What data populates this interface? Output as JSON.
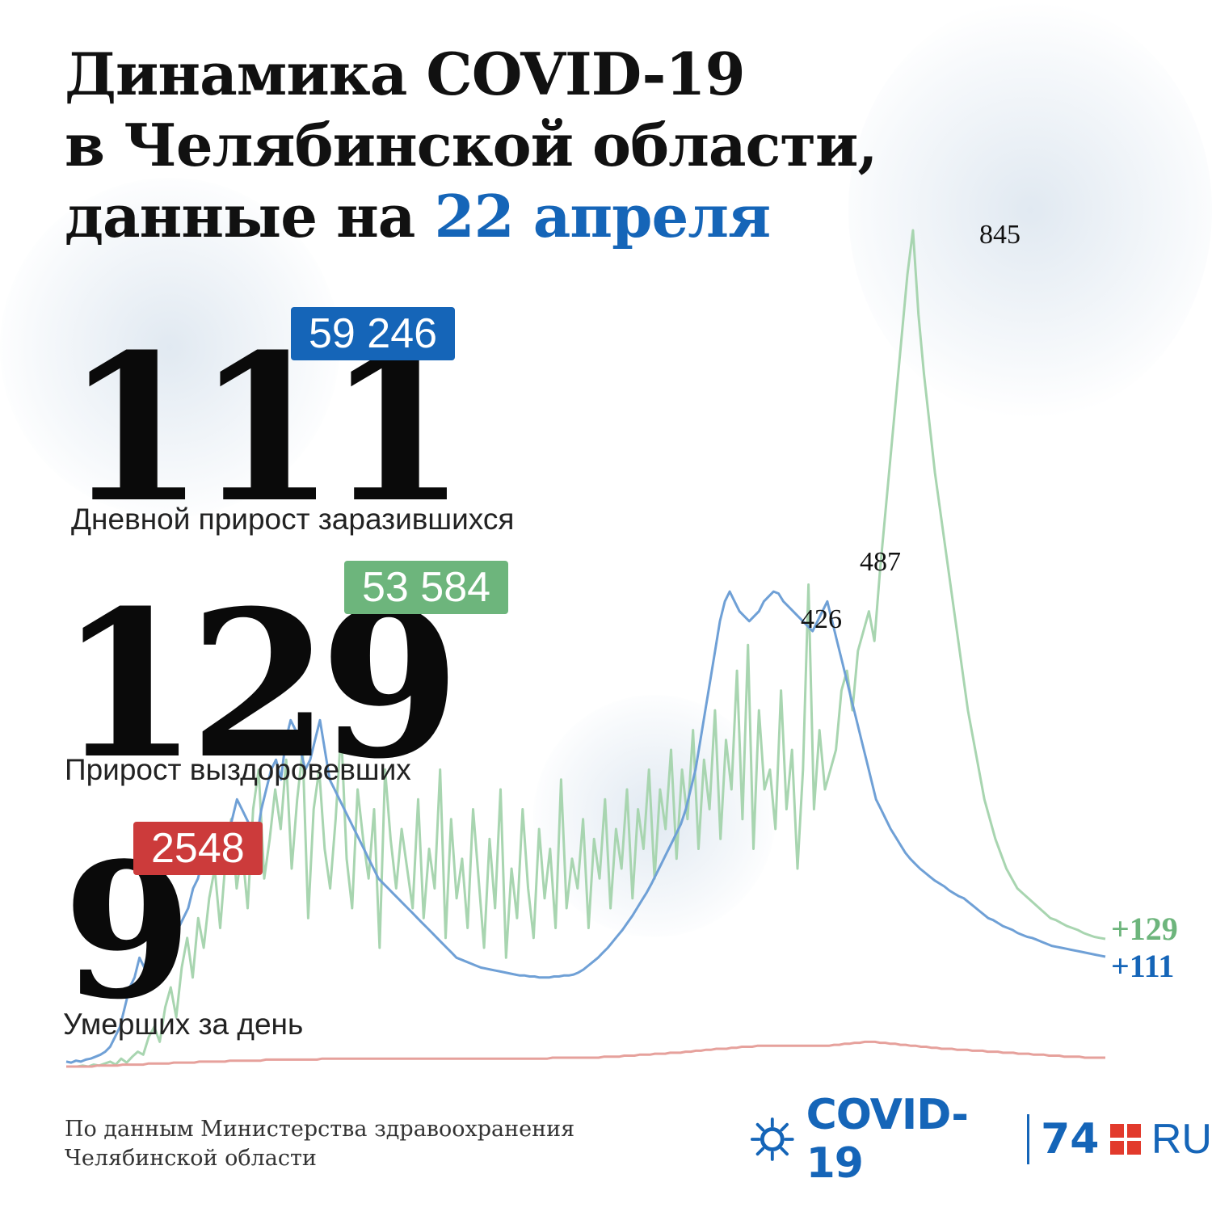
{
  "header": {
    "title_line1": "Динамика COVID-19",
    "title_line2": "в Челябинской области,",
    "title_line3_prefix": "данные на ",
    "title_line3_accent": "22 апреля"
  },
  "stats": {
    "infected": {
      "value": "111",
      "total": "59 246",
      "label": "Дневной прирост заразившихся",
      "color": "#1565b8"
    },
    "recovered": {
      "value": "129",
      "total": "53 584",
      "label": "Прирост выздоровевших",
      "color": "#6db57c"
    },
    "deaths": {
      "value": "9",
      "total": "2548",
      "label": "Умерших за день",
      "color": "#cc3b3b"
    }
  },
  "chart_data": {
    "type": "line",
    "series": [
      {
        "key": "infected",
        "color": "#6fa0d6",
        "values": [
          5,
          4,
          6,
          5,
          7,
          8,
          10,
          12,
          15,
          20,
          30,
          40,
          60,
          80,
          90,
          110,
          100,
          120,
          140,
          130,
          160,
          150,
          170,
          140,
          150,
          160,
          180,
          190,
          210,
          230,
          220,
          200,
          210,
          230,
          250,
          270,
          260,
          250,
          240,
          230,
          260,
          280,
          300,
          310,
          290,
          330,
          350,
          340,
          320,
          300,
          310,
          330,
          350,
          320,
          290,
          280,
          270,
          260,
          250,
          240,
          230,
          220,
          210,
          200,
          190,
          185,
          180,
          175,
          170,
          165,
          160,
          155,
          150,
          145,
          140,
          135,
          130,
          125,
          120,
          115,
          110,
          108,
          106,
          104,
          102,
          100,
          99,
          98,
          97,
          96,
          95,
          94,
          93,
          92,
          92,
          91,
          91,
          90,
          90,
          90,
          91,
          91,
          92,
          92,
          93,
          95,
          98,
          102,
          106,
          110,
          115,
          120,
          126,
          132,
          138,
          145,
          152,
          160,
          168,
          176,
          185,
          195,
          205,
          215,
          225,
          235,
          245,
          260,
          280,
          300,
          330,
          360,
          390,
          420,
          450,
          470,
          480,
          470,
          460,
          455,
          450,
          455,
          460,
          470,
          475,
          480,
          478,
          470,
          465,
          460,
          455,
          450,
          445,
          440,
          450,
          460,
          470,
          450,
          430,
          410,
          390,
          370,
          350,
          330,
          310,
          290,
          270,
          260,
          250,
          240,
          232,
          224,
          216,
          210,
          205,
          200,
          196,
          192,
          188,
          185,
          182,
          178,
          175,
          172,
          170,
          166,
          162,
          158,
          154,
          150,
          148,
          145,
          142,
          140,
          138,
          135,
          133,
          131,
          130,
          128,
          126,
          124,
          122,
          121,
          120,
          119,
          118,
          117,
          116,
          115,
          114,
          113,
          112,
          111
        ]
      },
      {
        "key": "recovered",
        "color": "#a8d5b0",
        "values": [
          0,
          0,
          0,
          1,
          0,
          2,
          1,
          3,
          5,
          2,
          8,
          4,
          10,
          15,
          12,
          30,
          40,
          25,
          60,
          80,
          50,
          100,
          130,
          90,
          150,
          120,
          170,
          200,
          140,
          210,
          250,
          180,
          220,
          160,
          260,
          300,
          190,
          230,
          280,
          240,
          310,
          200,
          270,
          320,
          150,
          260,
          300,
          220,
          180,
          250,
          340,
          210,
          160,
          280,
          230,
          190,
          260,
          120,
          300,
          230,
          180,
          240,
          200,
          160,
          270,
          150,
          220,
          180,
          300,
          130,
          250,
          170,
          210,
          140,
          260,
          190,
          120,
          230,
          160,
          280,
          110,
          200,
          150,
          260,
          180,
          130,
          240,
          170,
          220,
          140,
          290,
          160,
          210,
          180,
          250,
          140,
          230,
          190,
          270,
          160,
          240,
          200,
          280,
          170,
          260,
          220,
          300,
          190,
          280,
          240,
          320,
          210,
          300,
          250,
          340,
          220,
          310,
          260,
          360,
          230,
          330,
          280,
          400,
          250,
          426,
          220,
          360,
          280,
          300,
          240,
          380,
          260,
          320,
          200,
          300,
          487,
          260,
          340,
          280,
          300,
          320,
          380,
          400,
          360,
          420,
          440,
          460,
          430,
          500,
          560,
          620,
          680,
          740,
          800,
          845,
          760,
          700,
          650,
          600,
          560,
          520,
          480,
          440,
          400,
          360,
          330,
          300,
          270,
          250,
          230,
          215,
          200,
          190,
          180,
          175,
          170,
          165,
          160,
          155,
          150,
          148,
          145,
          142,
          140,
          138,
          135,
          133,
          131,
          130,
          129
        ]
      },
      {
        "key": "deaths",
        "color": "#e6a19c",
        "values": [
          0,
          0,
          0,
          0,
          0,
          0,
          1,
          1,
          1,
          1,
          1,
          2,
          2,
          2,
          2,
          2,
          3,
          3,
          3,
          3,
          3,
          4,
          4,
          4,
          4,
          4,
          5,
          5,
          5,
          5,
          5,
          5,
          6,
          6,
          6,
          6,
          6,
          6,
          6,
          7,
          7,
          7,
          7,
          7,
          7,
          7,
          7,
          7,
          7,
          7,
          8,
          8,
          8,
          8,
          8,
          8,
          8,
          8,
          8,
          8,
          8,
          8,
          8,
          8,
          8,
          8,
          8,
          8,
          8,
          8,
          8,
          8,
          8,
          8,
          8,
          8,
          8,
          8,
          8,
          8,
          8,
          8,
          8,
          8,
          8,
          8,
          8,
          8,
          8,
          8,
          8,
          8,
          8,
          8,
          8,
          9,
          9,
          9,
          9,
          9,
          9,
          9,
          9,
          9,
          9,
          10,
          10,
          10,
          10,
          11,
          11,
          11,
          12,
          12,
          12,
          13,
          13,
          13,
          14,
          14,
          14,
          15,
          15,
          16,
          16,
          17,
          17,
          18,
          18,
          18,
          19,
          19,
          20,
          20,
          20,
          21,
          21,
          21,
          21,
          21,
          21,
          21,
          21,
          21,
          21,
          21,
          21,
          21,
          21,
          21,
          22,
          22,
          23,
          23,
          24,
          24,
          25,
          25,
          25,
          24,
          24,
          23,
          23,
          22,
          22,
          21,
          21,
          20,
          20,
          19,
          19,
          18,
          18,
          18,
          17,
          17,
          17,
          16,
          16,
          16,
          15,
          15,
          15,
          14,
          14,
          14,
          13,
          13,
          13,
          12,
          12,
          12,
          11,
          11,
          11,
          10,
          10,
          10,
          10,
          9,
          9,
          9,
          9,
          9
        ]
      }
    ],
    "annotations": [
      {
        "series": "recovered",
        "label": "845",
        "value": 845
      },
      {
        "series": "recovered",
        "label": "487",
        "value": 487
      },
      {
        "series": "recovered",
        "label": "426",
        "value": 426
      }
    ],
    "end_labels": [
      {
        "series": "recovered",
        "label": "+129"
      },
      {
        "series": "infected",
        "label": "+111"
      }
    ],
    "ylim": [
      0,
      845
    ],
    "grid": false
  },
  "footer": {
    "source": "По данным Министерства здравоохранения Челябинской области",
    "logo_covid": "COVID-19",
    "logo_74": "74",
    "logo_ru": "RU"
  }
}
